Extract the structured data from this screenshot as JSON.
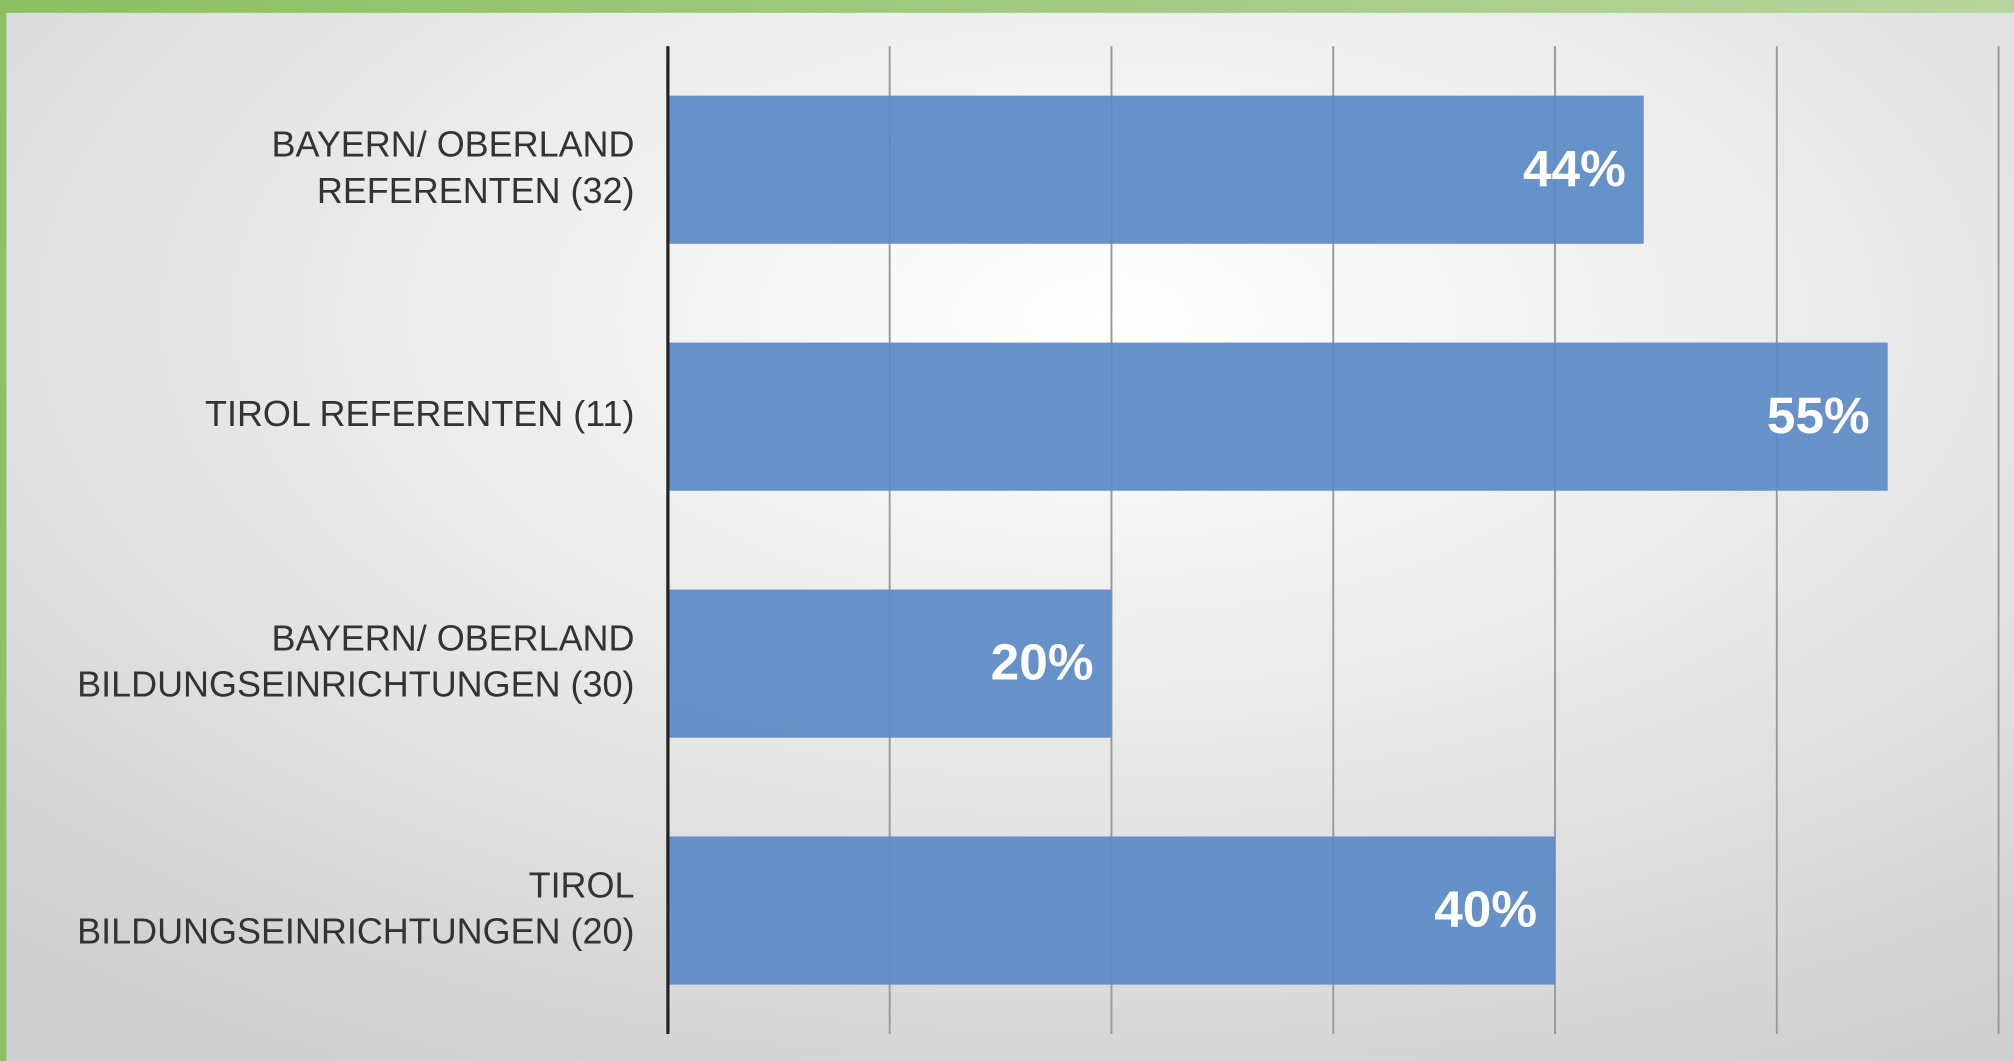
{
  "chart_data": {
    "type": "bar",
    "orientation": "horizontal",
    "categories": [
      "BAYERN/ OBERLAND\nREFERENTEN (32)",
      "TIROL REFERENTEN (11)",
      "BAYERN/ OBERLAND\nBILDUNGSEINRICHTUNGEN (30)",
      "TIROL\nBILDUNGSEINRICHTUNGEN (20)"
    ],
    "values": [
      44,
      55,
      20,
      40
    ],
    "value_labels": [
      "44%",
      "55%",
      "20%",
      "40%"
    ],
    "color": "#5b8ac6",
    "xlim": [
      0,
      60
    ],
    "xticks": [
      0,
      10,
      20,
      30,
      40,
      50,
      60
    ],
    "grid": true
  }
}
